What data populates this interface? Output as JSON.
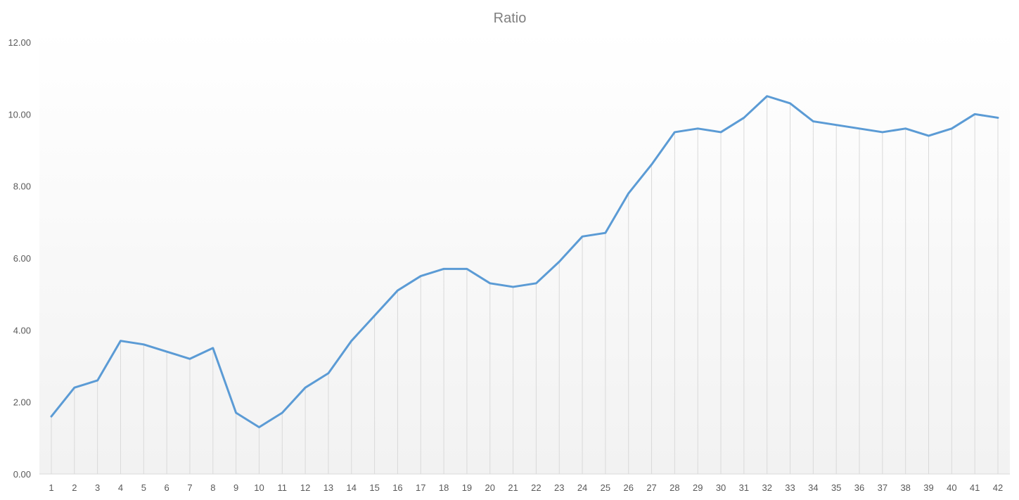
{
  "chart_data": {
    "type": "line",
    "title": "Ratio",
    "xlabel": "",
    "ylabel": "",
    "categories": [
      "1",
      "2",
      "3",
      "4",
      "5",
      "6",
      "7",
      "8",
      "9",
      "10",
      "11",
      "12",
      "13",
      "14",
      "15",
      "16",
      "17",
      "18",
      "19",
      "20",
      "21",
      "22",
      "23",
      "24",
      "25",
      "26",
      "27",
      "28",
      "29",
      "30",
      "31",
      "32",
      "33",
      "34",
      "35",
      "36",
      "37",
      "38",
      "39",
      "40",
      "41",
      "42"
    ],
    "series": [
      {
        "values": [
          1.6,
          2.4,
          2.6,
          3.7,
          3.6,
          3.4,
          3.2,
          3.5,
          1.7,
          1.3,
          1.7,
          2.4,
          2.8,
          3.7,
          4.4,
          5.1,
          5.5,
          5.7,
          5.7,
          5.3,
          5.2,
          5.3,
          5.9,
          6.6,
          6.7,
          7.8,
          8.6,
          9.5,
          9.6,
          9.5,
          9.9,
          10.5,
          10.3,
          9.8,
          9.7,
          9.6,
          9.5,
          9.6,
          9.4,
          9.6,
          10.0,
          9.9
        ]
      }
    ],
    "ylim": [
      0,
      12
    ],
    "yticks": [
      "0.00",
      "2.00",
      "4.00",
      "6.00",
      "8.00",
      "10.00",
      "12.00"
    ],
    "drop_lines": true,
    "horizontal_grid": false,
    "legend": "none",
    "colors": {
      "line": "#5b9bd5",
      "drop_line": "#d9d9d9",
      "plot_bg_top": "#ffffff",
      "plot_bg_bottom": "#f2f2f2",
      "title": "#7f7f7f",
      "tick": "#595959"
    }
  }
}
